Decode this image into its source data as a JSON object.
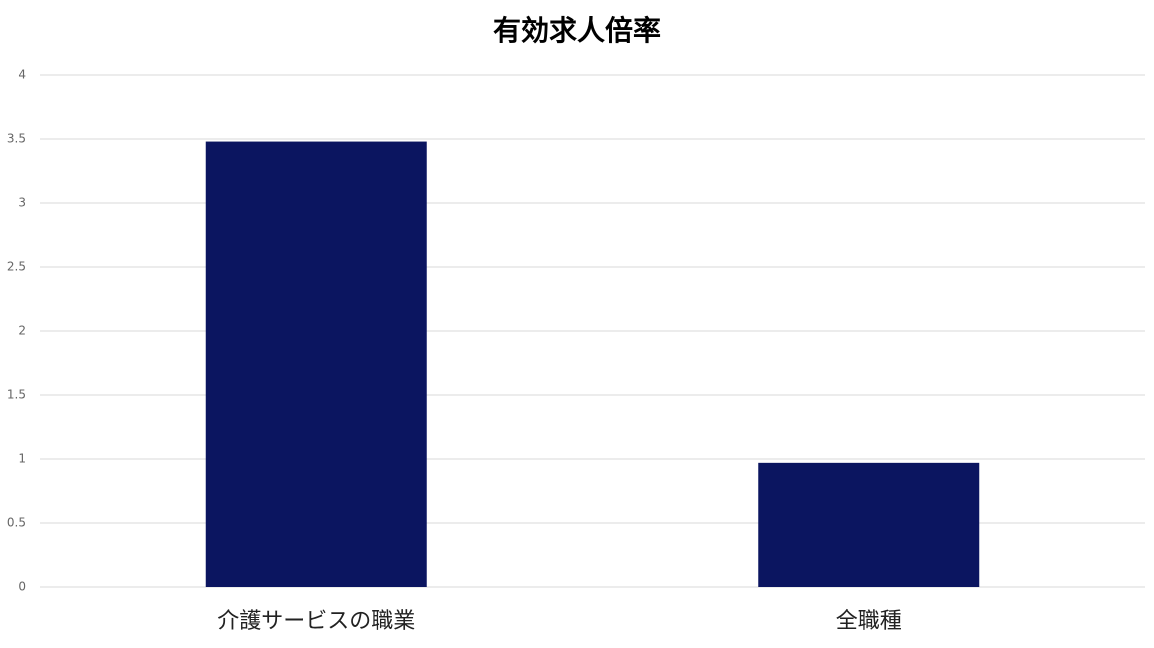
{
  "chart_data": {
    "type": "bar",
    "title": "有効求人倍率",
    "categories": [
      "介護サービスの職業",
      "全職種"
    ],
    "values": [
      3.48,
      0.97
    ],
    "color": "#0b1560",
    "ylim": [
      0,
      4
    ],
    "yticks": [
      0,
      0.5,
      1,
      1.5,
      2,
      2.5,
      3,
      3.5,
      4
    ],
    "grid": true
  }
}
